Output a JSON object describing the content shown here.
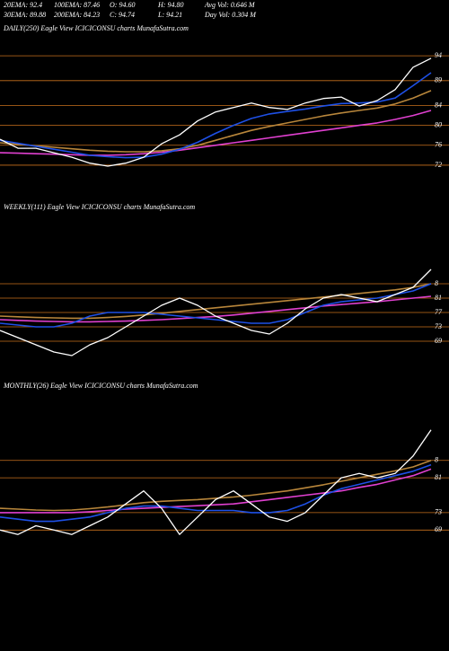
{
  "header": {
    "rows": [
      [
        "20EMA: 92.4",
        "100EMA: 87.46",
        "O: 94.60",
        "H: 94.80",
        "Avg Vol: 0.646  M"
      ],
      [
        "30EMA: 89.88",
        "200EMA: 84.23",
        "C: 94.74",
        "L: 94.21",
        "Day Vol: 0.304  M"
      ]
    ]
  },
  "chart_data": [
    {
      "type": "line",
      "title": "DAILY(250) Eagle  View  ICICICONSU charts MunafaSutra.com",
      "ylim": [
        70,
        98
      ],
      "yticks": [
        94,
        89,
        84,
        80,
        76,
        72
      ],
      "grid": true,
      "grid_color": "#c8701c",
      "series": [
        {
          "color": "#ffffff",
          "values": [
            77.2,
            75.4,
            75.4,
            74.5,
            73.6,
            72.4,
            71.8,
            72.4,
            73.6,
            76.3,
            78.1,
            80.9,
            82.7,
            83.6,
            84.5,
            83.6,
            83.2,
            84.5,
            85.4,
            85.7,
            83.9,
            85.0,
            87.2,
            91.7,
            93.5
          ]
        },
        {
          "color": "#1e50e6",
          "values": [
            77,
            76.4,
            75.8,
            75.2,
            74.6,
            74,
            73.7,
            73.5,
            73.6,
            74.2,
            75.2,
            76.6,
            78.4,
            80,
            81.4,
            82.3,
            82.8,
            83.3,
            83.9,
            84.4,
            84.5,
            84.7,
            85.5,
            88,
            90.6
          ]
        },
        {
          "color": "#b8863b",
          "values": [
            76.5,
            76.2,
            75.9,
            75.6,
            75.3,
            75.0,
            74.8,
            74.7,
            74.7,
            74.9,
            75.3,
            76.0,
            77.0,
            78.0,
            79.0,
            79.8,
            80.5,
            81.2,
            81.9,
            82.5,
            83.0,
            83.5,
            84.3,
            85.5,
            87.0
          ]
        },
        {
          "color": "#e040d0",
          "values": [
            74.5,
            74.4,
            74.3,
            74.2,
            74.1,
            74.0,
            74.0,
            74.1,
            74.3,
            74.6,
            75.0,
            75.5,
            76.0,
            76.5,
            77.0,
            77.5,
            78.0,
            78.5,
            79.0,
            79.5,
            80.0,
            80.5,
            81.2,
            82.0,
            83.0
          ]
        }
      ]
    },
    {
      "type": "line",
      "title": "WEEKLY(111) Eagle  View  ICICICONSU charts MunafaSutra.com",
      "ylim": [
        64,
        104
      ],
      "yticks": [
        {
          "value": 85,
          "label": "8"
        },
        81,
        77,
        73,
        69
      ],
      "grid": true,
      "grid_color": "#c8701c",
      "series": [
        {
          "color": "#ffffff",
          "values": [
            72,
            70,
            68,
            66,
            65,
            68,
            70,
            73,
            76,
            79,
            81,
            79,
            76,
            74,
            72,
            71,
            74,
            78,
            81,
            82,
            81,
            80,
            82,
            84,
            89
          ]
        },
        {
          "color": "#1e50e6",
          "values": [
            74,
            73.5,
            73,
            73,
            74,
            76,
            77,
            77,
            77,
            76.5,
            76,
            75.5,
            75,
            74.5,
            74,
            74,
            75,
            77,
            79,
            80,
            80.5,
            81,
            82,
            83,
            85
          ]
        },
        {
          "color": "#b8863b",
          "values": [
            76,
            75.8,
            75.6,
            75.5,
            75.4,
            75.4,
            75.6,
            75.9,
            76.3,
            76.8,
            77.3,
            77.8,
            78.3,
            78.8,
            79.3,
            79.8,
            80.3,
            80.8,
            81.3,
            81.8,
            82.3,
            82.8,
            83.3,
            84,
            85
          ]
        },
        {
          "color": "#e040d0",
          "values": [
            75,
            74.8,
            74.6,
            74.5,
            74.4,
            74.4,
            74.5,
            74.6,
            74.8,
            75,
            75.3,
            75.6,
            75.9,
            76.3,
            76.8,
            77.3,
            77.8,
            78.3,
            78.8,
            79.2,
            79.6,
            80,
            80.5,
            81,
            81.5
          ]
        }
      ]
    },
    {
      "type": "line",
      "title": "MONTHLY(26) Eagle  View  ICICICONSU charts MunafaSutra.com",
      "ylim": [
        67,
        100
      ],
      "yticks": [
        {
          "value": 85,
          "label": "8"
        },
        81,
        73,
        69
      ],
      "grid": true,
      "grid_color": "#c8701c",
      "series": [
        {
          "color": "#ffffff",
          "values": [
            69,
            68,
            70,
            69,
            68,
            70,
            72,
            75,
            78,
            74,
            68,
            72,
            76,
            78,
            75,
            72,
            71,
            73,
            77,
            81,
            82,
            81,
            82,
            86,
            92
          ]
        },
        {
          "color": "#1e50e6",
          "values": [
            72,
            71.5,
            71,
            71,
            71.5,
            72,
            73,
            74,
            74.5,
            74.5,
            74,
            73.5,
            73.5,
            73.5,
            73,
            73,
            73.5,
            75,
            77,
            78.5,
            79.5,
            80.5,
            81.5,
            82.5,
            84
          ]
        },
        {
          "color": "#b8863b",
          "values": [
            74,
            73.8,
            73.6,
            73.5,
            73.6,
            73.9,
            74.3,
            74.8,
            75.3,
            75.6,
            75.8,
            76,
            76.3,
            76.6,
            77,
            77.5,
            78,
            78.7,
            79.4,
            80.2,
            81,
            81.8,
            82.6,
            83.5,
            85
          ]
        },
        {
          "color": "#e040d0",
          "values": [
            73,
            73,
            73,
            73,
            73,
            73.2,
            73.5,
            73.8,
            74,
            74.2,
            74.4,
            74.6,
            74.8,
            75,
            75.5,
            76,
            76.5,
            77,
            77.5,
            78,
            78.8,
            79.5,
            80.5,
            81.5,
            83
          ]
        }
      ]
    }
  ]
}
